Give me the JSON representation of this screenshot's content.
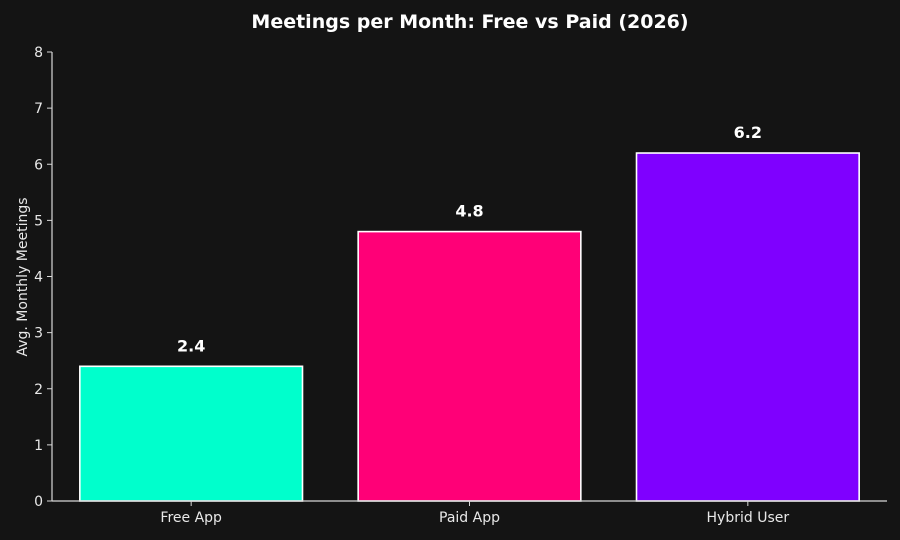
{
  "chart_data": {
    "type": "bar",
    "title": "Meetings per Month: Free vs Paid (2026)",
    "xlabel": "",
    "ylabel": "Avg. Monthly Meetings",
    "categories": [
      "Free App",
      "Paid App",
      "Hybrid User"
    ],
    "values": [
      2.4,
      4.8,
      6.2
    ],
    "data_labels": [
      "2.4",
      "4.8",
      "6.2"
    ],
    "colors": [
      "#00ffcc",
      "#ff0077",
      "#7f00ff"
    ],
    "ylim": [
      0,
      8
    ],
    "yticks": [
      0,
      1,
      2,
      3,
      4,
      5,
      6,
      7,
      8
    ],
    "grid": false,
    "legend": "none",
    "background": "#141414",
    "axis_color": "#d8d8d8",
    "text_color": "#ffffff",
    "bar_edge_color": "#ffffff"
  }
}
